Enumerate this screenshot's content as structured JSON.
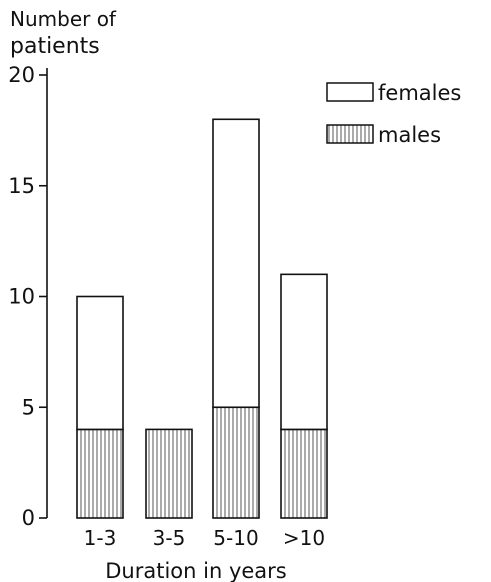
{
  "chart_data": {
    "type": "bar",
    "stacked": true,
    "ylabel_line1": "Number of",
    "ylabel_line2": "patients",
    "xlabel": "Duration in years",
    "categories": [
      "1-3",
      "3-5",
      "5-10",
      ">10"
    ],
    "series": [
      {
        "name": "males",
        "values": [
          4,
          4,
          5,
          4
        ],
        "fill": "hatched-vertical"
      },
      {
        "name": "females",
        "values": [
          6,
          0,
          13,
          7
        ],
        "fill": "white"
      }
    ],
    "totals": [
      10,
      4,
      18,
      11
    ],
    "ylim": [
      0,
      20
    ],
    "yticks": [
      0,
      5,
      10,
      15,
      20
    ],
    "legend_position": "top-right",
    "grid": false
  }
}
